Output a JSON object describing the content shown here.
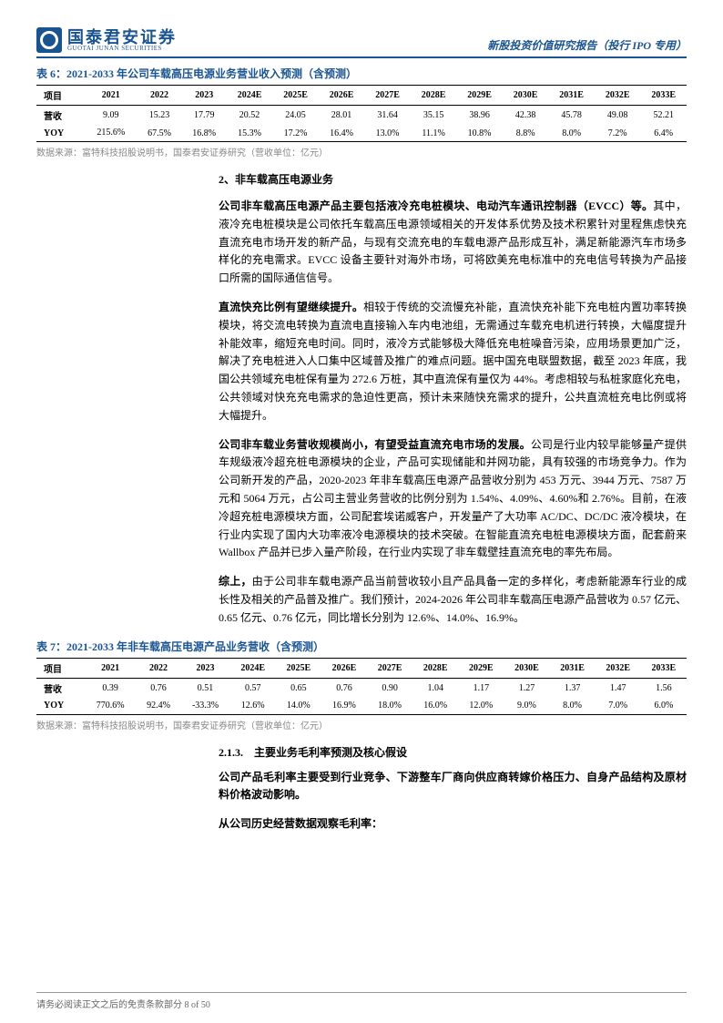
{
  "header": {
    "logo_cn": "国泰君安证券",
    "logo_en": "GUOTAI JUNAN SECURITIES",
    "right_text": "新股投资价值研究报告（投行 IPO 专用）"
  },
  "table6": {
    "title": "表 6：2021-2033 年公司车载高压电源业务营业收入预测（含预测）",
    "headers": [
      "项目",
      "2021",
      "2022",
      "2023",
      "2024E",
      "2025E",
      "2026E",
      "2027E",
      "2028E",
      "2029E",
      "2030E",
      "2031E",
      "2032E",
      "2033E"
    ],
    "revenue_label": "营收",
    "revenue": [
      "9.09",
      "15.23",
      "17.79",
      "20.52",
      "24.05",
      "28.01",
      "31.64",
      "35.15",
      "38.96",
      "42.38",
      "45.78",
      "49.08",
      "52.21"
    ],
    "yoy_label": "YOY",
    "yoy_first": "215.6%",
    "yoy": [
      "67.5%",
      "16.8%",
      "15.3%",
      "17.2%",
      "16.4%",
      "13.0%",
      "11.1%",
      "10.8%",
      "8.8%",
      "8.0%",
      "7.2%",
      "6.4%"
    ],
    "source": "数据来源：富特科技招股说明书，国泰君安证券研究（营收单位：亿元）"
  },
  "section2": {
    "heading": "2、非车载高压电源业务",
    "p1_lead": "公司非车载高压电源产品主要包括液冷充电桩模块、电动汽车通讯控制器（EVCC）等。",
    "p1_rest": "其中，液冷充电桩模块是公司依托车载高压电源领域相关的开发体系优势及技术积累针对里程焦虑快充直流充电市场开发的新产品，与现有交流充电的车载电源产品形成互补，满足新能源汽车市场多样化的充电需求。EVCC 设备主要针对海外市场，可将欧美充电标准中的充电信号转换为产品接口所需的国际通信信号。",
    "p2_lead": "直流快充比例有望继续提升。",
    "p2_rest": "相较于传统的交流慢充补能，直流快充补能下充电桩内置功率转换模块，将交流电转换为直流电直接输入车内电池组，无需通过车载充电机进行转换，大幅度提升补能效率，缩短充电时间。同时，液冷方式能够极大降低充电桩噪音污染，应用场景更加广泛，解决了充电桩进入人口集中区域普及推广的难点问题。据中国充电联盟数据，截至 2023 年底，我国公共领域充电桩保有量为 272.6 万桩，其中直流保有量仅为 44%。考虑相较与私桩家庭化充电，公共领域对快充充电需求的急迫性更高，预计未来随快充需求的提升，公共直流桩充电比例或将大幅提升。",
    "p3_lead": "公司非车载业务营收规模尚小，有望受益直流充电市场的发展。",
    "p3_rest": "公司是行业内较早能够量产提供车规级液冷超充桩电源模块的企业，产品可实现储能和并网功能，具有较强的市场竞争力。作为公司新开发的产品，2020-2023 年非车载高压电源产品营收分别为 453 万元、3944 万元、7587 万元和 5064 万元，占公司主营业务营收的比例分别为 1.54%、4.09%、4.60%和 2.76%。目前，在液冷超充桩电源模块方面，公司配套埃诺威客户，开发量产了大功率 AC/DC、DC/DC 液冷模块，在行业内实现了国内大功率液冷电源模块的技术突破。在智能直流充电桩电源模块方面，配套蔚来 Wallbox 产品并已步入量产阶段，在行业内实现了非车载壁挂直流充电的率先布局。",
    "p4_lead": "综上，",
    "p4_rest": "由于公司非车载电源产品当前营收较小且产品具备一定的多样化，考虑新能源车行业的成长性及相关的产品普及推广。我们预计，2024-2026 年公司非车载高压电源产品营收为 0.57 亿元、0.65 亿元、0.76 亿元，同比增长分别为 12.6%、14.0%、16.9%。"
  },
  "table7": {
    "title": "表 7：2021-2033 年非车载高压电源产品业务营收（含预测）",
    "headers": [
      "项目",
      "2021",
      "2022",
      "2023",
      "2024E",
      "2025E",
      "2026E",
      "2027E",
      "2028E",
      "2029E",
      "2030E",
      "2031E",
      "2032E",
      "2033E"
    ],
    "revenue_label": "营收",
    "revenue": [
      "0.39",
      "0.76",
      "0.51",
      "0.57",
      "0.65",
      "0.76",
      "0.90",
      "1.04",
      "1.17",
      "1.27",
      "1.37",
      "1.47",
      "1.56"
    ],
    "yoy_label": "YOY",
    "yoy_first": "770.6%",
    "yoy": [
      "92.4%",
      "-33.3%",
      "12.6%",
      "14.0%",
      "16.9%",
      "18.0%",
      "16.0%",
      "12.0%",
      "9.0%",
      "8.0%",
      "7.0%",
      "6.0%"
    ],
    "source": "数据来源：富特科技招股说明书，国泰君安证券研究（营收单位：亿元）"
  },
  "section213": {
    "num": "2.1.3.　主要业务毛利率预测及核心假设",
    "p1": "公司产品毛利率主要受到行业竞争、下游整车厂商向供应商转嫁价格压力、自身产品结构及原材料价格波动影响。",
    "p2": "从公司历史经营数据观察毛利率："
  },
  "footer": "请务必阅读正文之后的免责条款部分 8 of 50"
}
